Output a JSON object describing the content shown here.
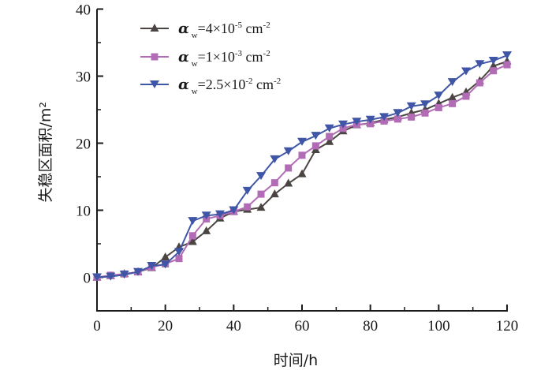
{
  "chart_data": {
    "type": "line",
    "title": "",
    "xlabel": "时间/h",
    "ylabel": "失稳区面积/m²",
    "xlim": [
      0,
      120
    ],
    "ylim": [
      -5,
      40
    ],
    "xticks": [
      0,
      20,
      40,
      60,
      80,
      100,
      120
    ],
    "xtick_labels": [
      "0",
      "20",
      "40",
      "60",
      "80",
      "100",
      "120"
    ],
    "yticks": [
      0,
      10,
      20,
      30,
      40
    ],
    "ytick_labels": [
      "0",
      "10",
      "20",
      "30",
      "40"
    ],
    "grid": false,
    "legend_position": "top-left",
    "x": [
      0,
      4,
      8,
      12,
      16,
      20,
      24,
      28,
      32,
      36,
      40,
      44,
      48,
      52,
      56,
      60,
      64,
      68,
      72,
      76,
      80,
      84,
      88,
      92,
      96,
      100,
      104,
      108,
      112,
      116,
      120
    ],
    "series": [
      {
        "name": "αw=4×10-5 cm-2",
        "legend_prefix": "α",
        "legend_sub": "w",
        "legend_main": "=4×10",
        "legend_exp": "-5",
        "legend_unit": " cm",
        "legend_unit_exp": "-2",
        "color": "#4a4542",
        "marker": "triangle-up",
        "values": [
          0,
          0.2,
          0.5,
          0.8,
          1.4,
          3.0,
          4.5,
          5.3,
          6.9,
          8.8,
          9.8,
          10.1,
          10.4,
          12.4,
          14.0,
          15.4,
          19.0,
          20.2,
          21.8,
          22.7,
          23.0,
          23.5,
          23.9,
          24.5,
          25.0,
          25.9,
          26.8,
          27.6,
          29.3,
          31.5,
          32.2
        ]
      },
      {
        "name": "αw=1×10-3 cm-2",
        "legend_prefix": "α",
        "legend_sub": "w",
        "legend_main": "=1×10",
        "legend_exp": "-3",
        "legend_unit": " cm",
        "legend_unit_exp": "-2",
        "color": "#b26cb6",
        "marker": "square",
        "values": [
          0,
          0.3,
          0.5,
          0.8,
          1.5,
          2.0,
          2.8,
          6.2,
          8.7,
          9.2,
          9.8,
          10.5,
          12.4,
          14.1,
          16.3,
          18.2,
          19.6,
          21.0,
          22.2,
          22.8,
          22.9,
          23.3,
          23.6,
          23.9,
          24.5,
          25.3,
          25.9,
          27.0,
          29.0,
          30.8,
          31.7
        ]
      },
      {
        "name": "αw=2.5×10-2 cm-2",
        "legend_prefix": "α",
        "legend_sub": "w",
        "legend_main": "=2.5×10",
        "legend_exp": "-2",
        "legend_unit": " cm",
        "legend_unit_exp": "-2",
        "color": "#3f55a6",
        "marker": "triangle-down",
        "values": [
          0,
          0.1,
          0.4,
          0.8,
          1.7,
          1.9,
          3.8,
          8.4,
          9.2,
          9.4,
          10.0,
          12.9,
          15.1,
          17.6,
          18.8,
          20.2,
          21.1,
          22.2,
          22.8,
          23.2,
          23.5,
          23.9,
          24.5,
          25.5,
          25.8,
          27.1,
          29.1,
          30.7,
          31.8,
          32.3,
          33.1
        ]
      }
    ]
  }
}
